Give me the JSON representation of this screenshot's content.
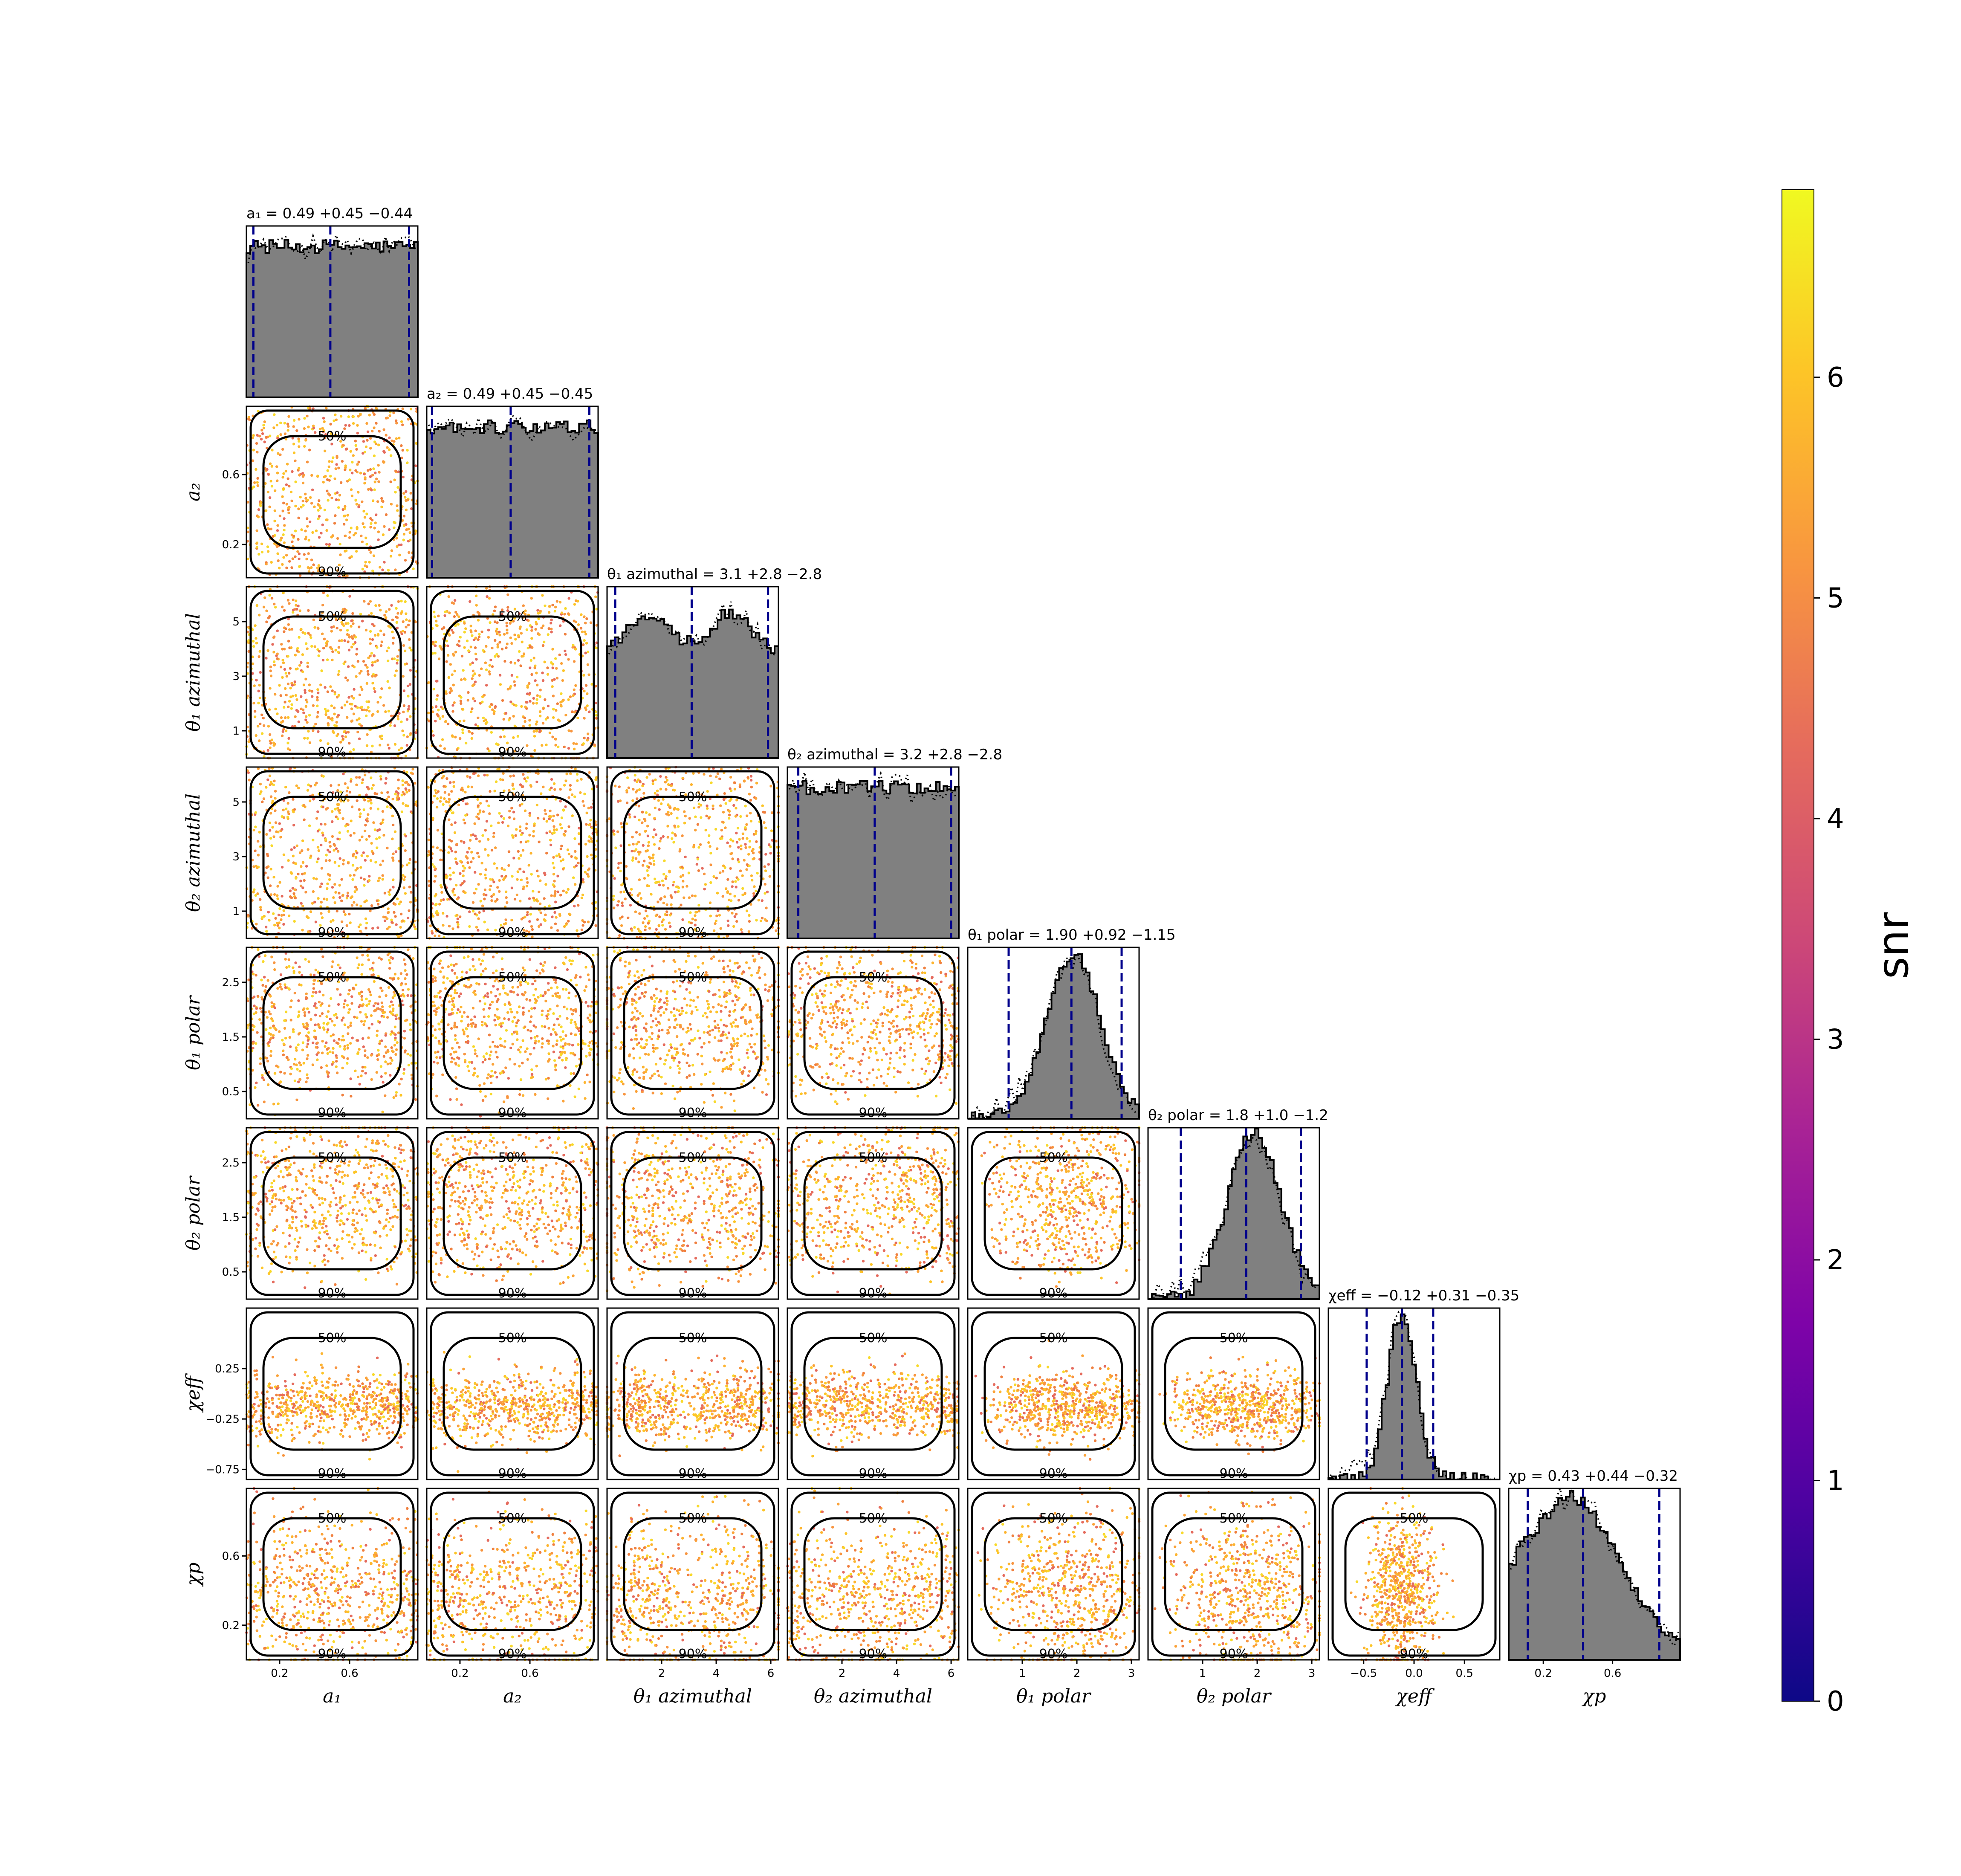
{
  "chart_data": {
    "type": "corner",
    "parameters": [
      {
        "key": "a1",
        "axis_label": "a₁",
        "title": "a₁ = 0.49 +0.45 −0.44",
        "range": [
          0.01,
          0.99
        ],
        "ticks": [
          0.2,
          0.6
        ],
        "median": 0.49,
        "lo": 0.05,
        "hi": 0.94,
        "hist_shape": "flat"
      },
      {
        "key": "a2",
        "axis_label": "a₂",
        "title": "a₂ = 0.49 +0.45 −0.45",
        "range": [
          0.01,
          0.99
        ],
        "ticks": [
          0.2,
          0.6
        ],
        "median": 0.49,
        "lo": 0.04,
        "hi": 0.94,
        "hist_shape": "flat"
      },
      {
        "key": "theta1_azimuthal",
        "axis_label": "θ₁ azimuthal",
        "title": "θ₁ azimuthal = 3.1 +2.8 −2.8",
        "range": [
          0.0,
          6.28
        ],
        "ticks": [
          1,
          3,
          5
        ],
        "median": 3.1,
        "lo": 0.3,
        "hi": 5.9,
        "hist_shape": "bimodal"
      },
      {
        "key": "theta2_azimuthal",
        "axis_label": "θ₂ azimuthal",
        "title": "θ₂ azimuthal = 3.2 +2.8 −2.8",
        "range": [
          0.0,
          6.28
        ],
        "ticks": [
          1,
          3,
          5
        ],
        "median": 3.2,
        "lo": 0.4,
        "hi": 6.0,
        "hist_shape": "flat"
      },
      {
        "key": "theta1_polar",
        "axis_label": "θ₁ polar",
        "title": "θ₁ polar = 1.90 +0.92 −1.15",
        "range": [
          0.0,
          3.14
        ],
        "ticks": [
          0.5,
          1.5,
          2.5
        ],
        "median": 1.9,
        "lo": 0.75,
        "hi": 2.82,
        "hist_shape": "sine"
      },
      {
        "key": "theta2_polar",
        "axis_label": "θ₂ polar",
        "title": "θ₂ polar = 1.8 +1.0 −1.2",
        "range": [
          0.0,
          3.14
        ],
        "ticks": [
          0.5,
          1.5,
          2.5
        ],
        "median": 1.8,
        "lo": 0.6,
        "hi": 2.8,
        "hist_shape": "sine"
      },
      {
        "key": "chi_eff",
        "axis_label": "χeff",
        "title": "χeff = −0.12 +0.31 −0.35",
        "range": [
          -0.85,
          0.85
        ],
        "ticks": [
          -0.75,
          -0.25,
          0.25
        ],
        "median": -0.12,
        "lo": -0.47,
        "hi": 0.19,
        "hist_shape": "peak"
      },
      {
        "key": "chi_p",
        "axis_label": "χp",
        "title": "χp = 0.43 +0.44 −0.32",
        "range": [
          0.0,
          0.99
        ],
        "ticks": [
          0.2,
          0.6
        ],
        "median": 0.43,
        "lo": 0.11,
        "hi": 0.87,
        "hist_shape": "skew"
      }
    ],
    "bottom_tick_labels": [
      [
        "0.2",
        "0.6"
      ],
      [
        "0.2",
        "0.6"
      ],
      [
        "2",
        "4",
        "6"
      ],
      [
        "2",
        "4",
        "6"
      ],
      [
        "1",
        "2",
        "3"
      ],
      [
        "1",
        "2",
        "3"
      ],
      [
        "−0.5",
        "0.0",
        "0.5"
      ],
      [
        "0.2",
        "0.6"
      ]
    ],
    "left_tick_labels": [
      [],
      [
        "0.2",
        "0.6"
      ],
      [
        "1",
        "3",
        "5"
      ],
      [
        "1",
        "3",
        "5"
      ],
      [
        "0.5",
        "1.5",
        "2.5"
      ],
      [
        "0.5",
        "1.5",
        "2.5"
      ],
      [
        "−0.75",
        "−0.25",
        "0.25"
      ],
      [
        "0.2",
        "0.6"
      ]
    ],
    "contour_levels": [
      "50%",
      "90%"
    ],
    "scatter_color_variable": "snr",
    "colorbar": {
      "label": "snr",
      "range": [
        0,
        6.85
      ],
      "ticks": [
        "0",
        "1",
        "2",
        "3",
        "4",
        "5",
        "6"
      ],
      "colormap": "plasma"
    },
    "hist_fill_color": "#808080",
    "interval_line_color": "#00008b",
    "contour_color": "#000000"
  }
}
